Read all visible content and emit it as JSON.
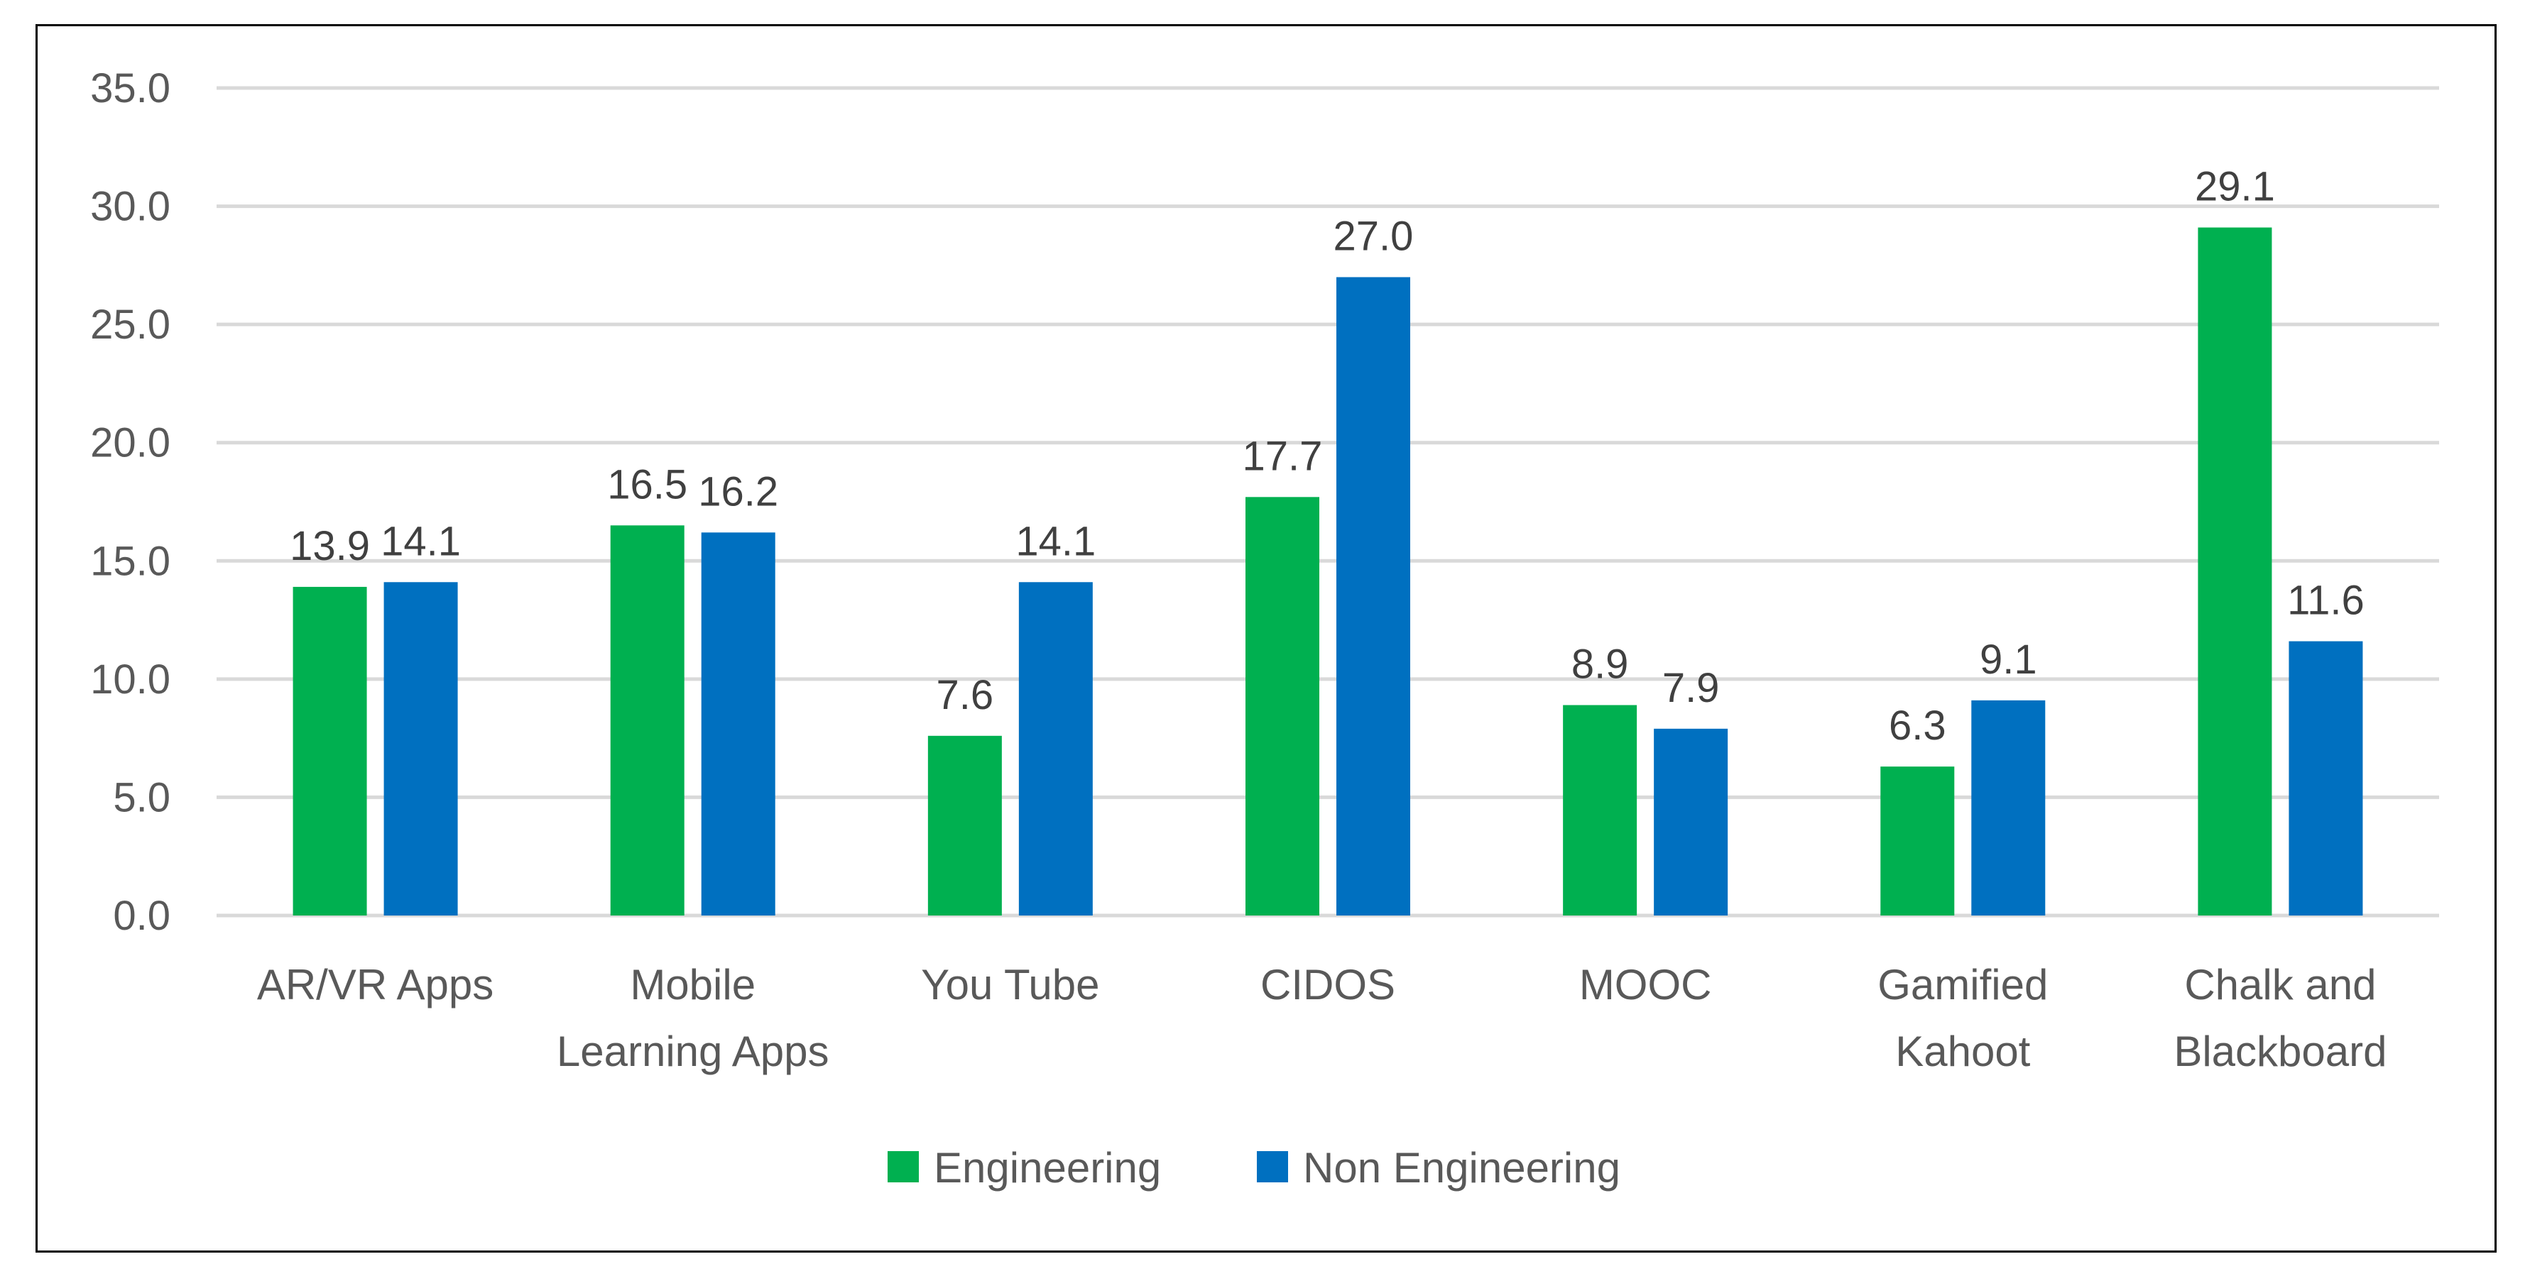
{
  "chart_data": {
    "type": "bar",
    "title": "",
    "xlabel": "",
    "ylabel": "",
    "ylim": [
      0,
      35
    ],
    "yticks": [
      "0.0",
      "5.0",
      "10.0",
      "15.0",
      "20.0",
      "25.0",
      "30.0",
      "35.0"
    ],
    "grid": true,
    "legend_position": "bottom",
    "categories": [
      [
        "AR/VR Apps"
      ],
      [
        "Mobile",
        "Learning Apps"
      ],
      [
        "You Tube"
      ],
      [
        "CIDOS"
      ],
      [
        "MOOC"
      ],
      [
        "Gamified",
        "Kahoot"
      ],
      [
        "Chalk and",
        "Blackboard"
      ]
    ],
    "series": [
      {
        "name": "Engineering",
        "color": "#00B050",
        "values": [
          13.9,
          16.5,
          7.6,
          17.7,
          8.9,
          6.3,
          29.1
        ],
        "labels": [
          "13.9",
          "16.5",
          "7.6",
          "17.7",
          "8.9",
          "6.3",
          "29.1"
        ]
      },
      {
        "name": "Non Engineering",
        "color": "#0070C0",
        "values": [
          14.1,
          16.2,
          14.1,
          27.0,
          7.9,
          9.1,
          11.6
        ],
        "labels": [
          "14.1",
          "16.2",
          "14.1",
          "27.0",
          "7.9",
          "9.1",
          "11.6"
        ]
      }
    ]
  }
}
